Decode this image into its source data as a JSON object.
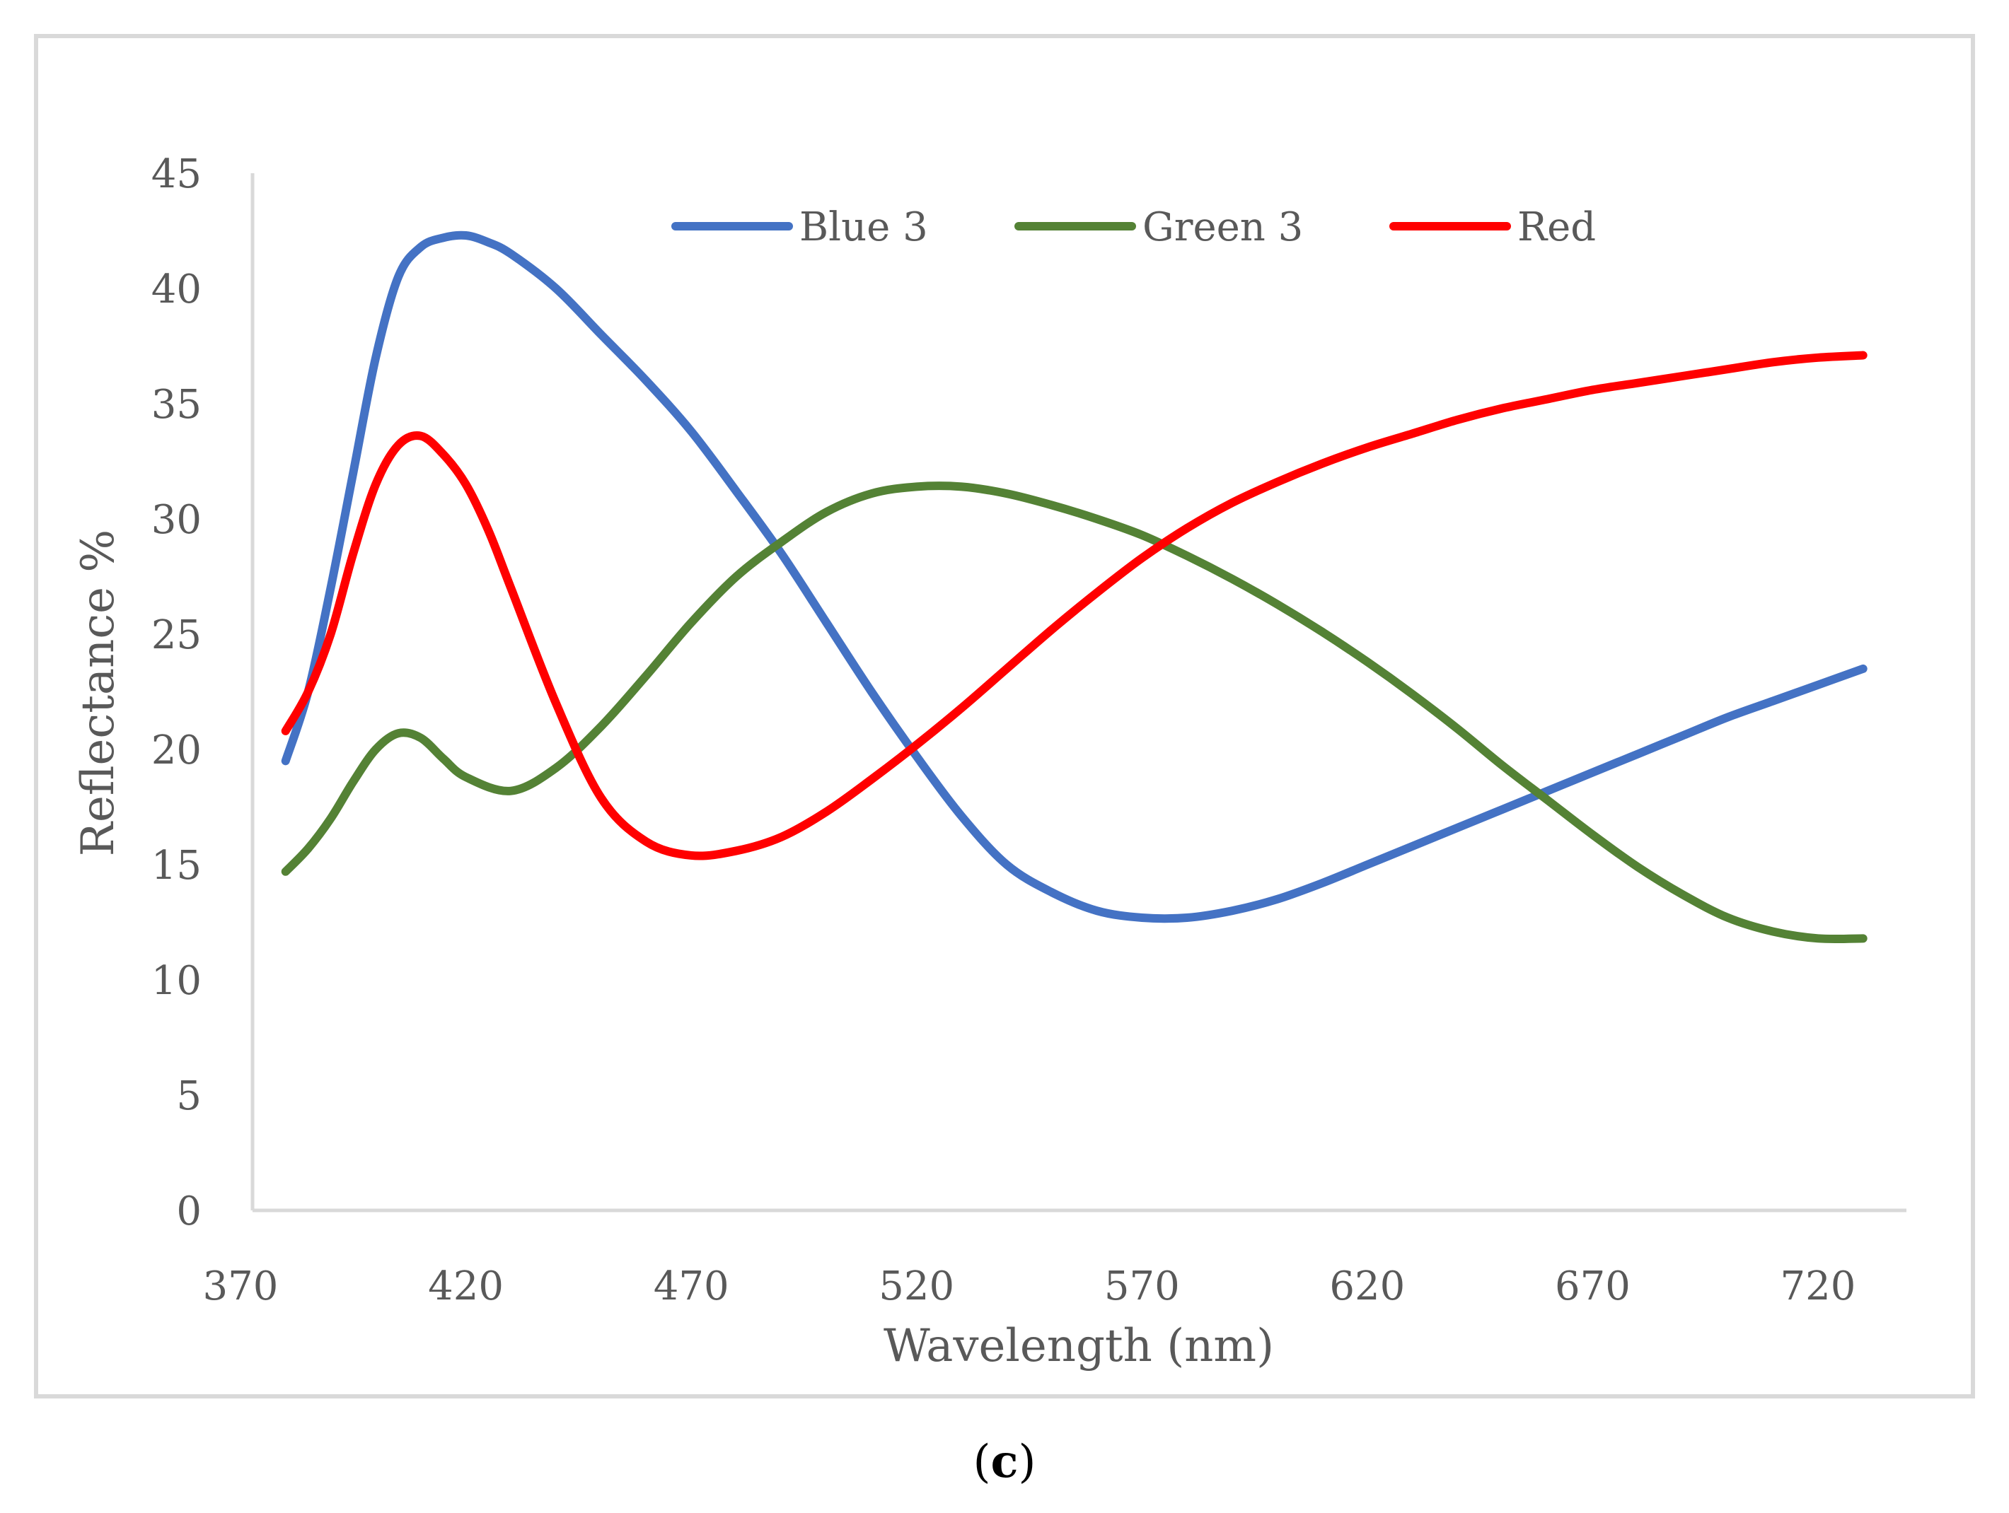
{
  "caption": {
    "prefix": "(",
    "letter": "c",
    "suffix": ")"
  },
  "chart_data": {
    "type": "line",
    "title": "",
    "xlabel": "Wavelength (nm)",
    "ylabel": "Reflectance %",
    "xlim": [
      370,
      740
    ],
    "ylim": [
      0,
      45
    ],
    "xticks": [
      370,
      420,
      470,
      520,
      570,
      620,
      670,
      720
    ],
    "yticks": [
      0,
      5,
      10,
      15,
      20,
      25,
      30,
      35,
      40,
      45
    ],
    "grid": false,
    "legend_position": "top",
    "series": [
      {
        "name": "Blue 3",
        "color": "#4472c4",
        "x": [
          380,
          385,
          390,
          395,
          400,
          405,
          410,
          415,
          420,
          425,
          430,
          440,
          450,
          460,
          470,
          480,
          490,
          500,
          510,
          520,
          530,
          540,
          550,
          560,
          570,
          580,
          590,
          600,
          610,
          620,
          630,
          640,
          650,
          660,
          670,
          680,
          690,
          700,
          710,
          720,
          730
        ],
        "values": [
          19.5,
          22.5,
          27,
          32,
          37,
          40.5,
          41.8,
          42.2,
          42.3,
          42.0,
          41.5,
          40,
          38,
          36,
          33.8,
          31.2,
          28.5,
          25.5,
          22.5,
          19.7,
          17.1,
          15.0,
          13.8,
          13.0,
          12.7,
          12.7,
          13.0,
          13.5,
          14.2,
          15.0,
          15.8,
          16.6,
          17.4,
          18.2,
          19.0,
          19.8,
          20.6,
          21.4,
          22.1,
          22.8,
          23.5
        ]
      },
      {
        "name": "Green 3",
        "color": "#548235",
        "x": [
          380,
          385,
          390,
          395,
          400,
          405,
          410,
          415,
          420,
          430,
          440,
          450,
          460,
          470,
          480,
          490,
          500,
          510,
          520,
          530,
          540,
          550,
          560,
          570,
          580,
          590,
          600,
          610,
          620,
          630,
          640,
          650,
          660,
          670,
          680,
          690,
          700,
          710,
          720,
          730
        ],
        "values": [
          14.7,
          15.7,
          17.0,
          18.6,
          20.0,
          20.7,
          20.5,
          19.6,
          18.8,
          18.2,
          19.2,
          21.0,
          23.2,
          25.5,
          27.5,
          29.0,
          30.3,
          31.1,
          31.4,
          31.4,
          31.1,
          30.6,
          30.0,
          29.3,
          28.4,
          27.4,
          26.3,
          25.1,
          23.8,
          22.4,
          20.9,
          19.3,
          17.8,
          16.3,
          14.9,
          13.7,
          12.7,
          12.1,
          11.8,
          11.8
        ]
      },
      {
        "name": "Red",
        "color": "#ff0000",
        "x": [
          380,
          385,
          390,
          395,
          400,
          405,
          410,
          415,
          420,
          425,
          430,
          440,
          450,
          460,
          470,
          480,
          490,
          500,
          510,
          520,
          530,
          540,
          550,
          560,
          570,
          580,
          590,
          600,
          610,
          620,
          630,
          640,
          650,
          660,
          670,
          680,
          690,
          700,
          710,
          720,
          730
        ],
        "values": [
          20.8,
          22.5,
          25.0,
          28.5,
          31.5,
          33.2,
          33.6,
          32.8,
          31.5,
          29.5,
          27.0,
          22.0,
          17.9,
          16.0,
          15.4,
          15.6,
          16.2,
          17.3,
          18.7,
          20.2,
          21.8,
          23.5,
          25.2,
          26.8,
          28.3,
          29.6,
          30.7,
          31.6,
          32.4,
          33.1,
          33.7,
          34.3,
          34.8,
          35.2,
          35.6,
          35.9,
          36.2,
          36.5,
          36.8,
          37.0,
          37.1
        ]
      }
    ]
  }
}
